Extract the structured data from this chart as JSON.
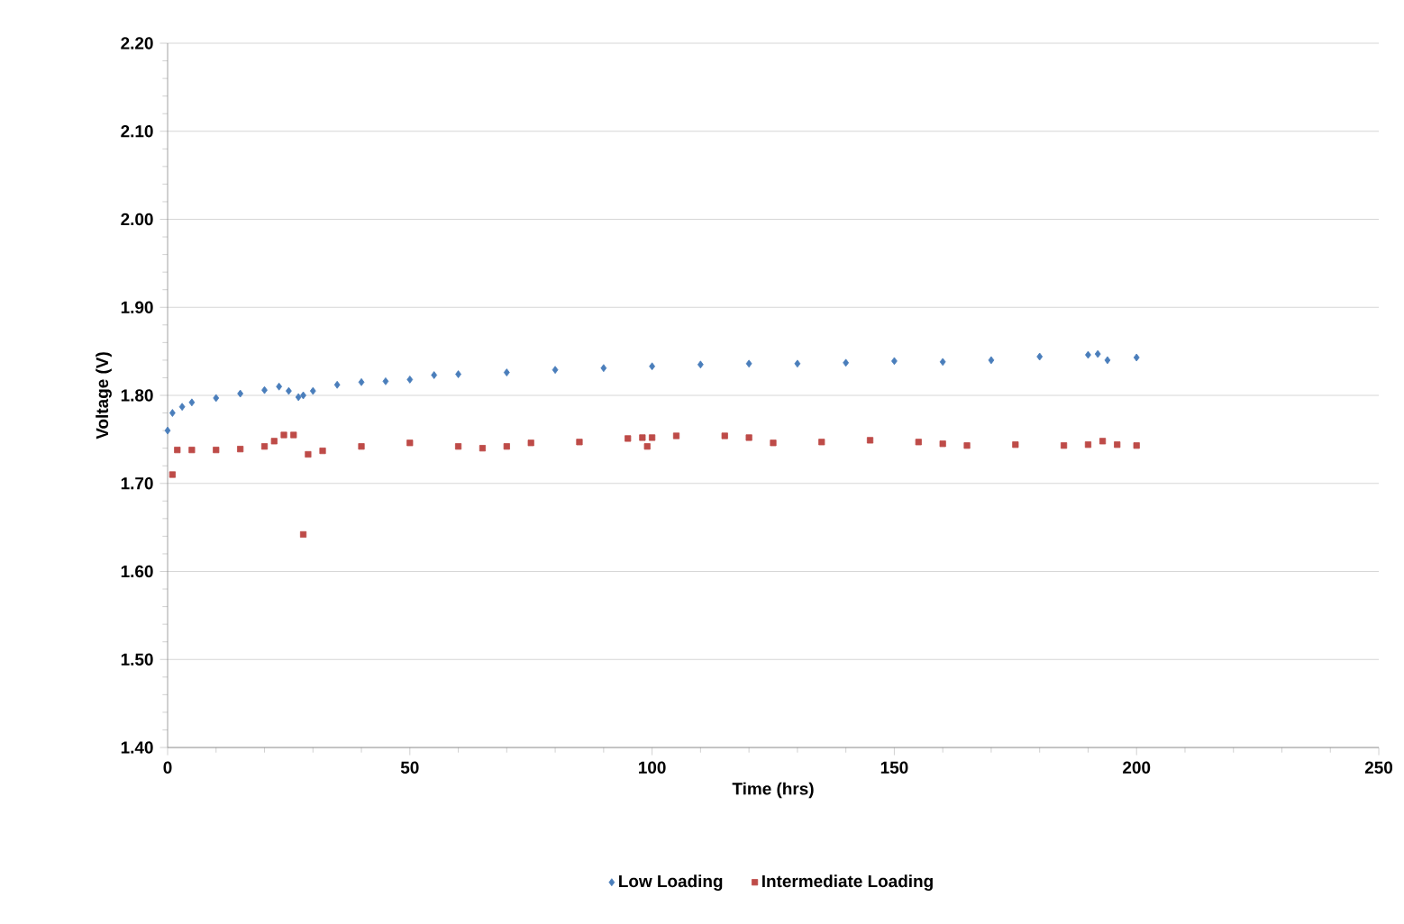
{
  "chart_data": {
    "type": "scatter",
    "xlabel": "Time (hrs)",
    "ylabel": "Voltage (V)",
    "xlim": [
      0,
      250
    ],
    "ylim": [
      1.4,
      2.2
    ],
    "xticks": [
      0,
      50,
      100,
      150,
      200,
      250
    ],
    "yticks": [
      {
        "value": 1.4,
        "label": "1.40"
      },
      {
        "value": 1.5,
        "label": "1.50"
      },
      {
        "value": 1.6,
        "label": "1.60"
      },
      {
        "value": 1.7,
        "label": "1.70"
      },
      {
        "value": 1.8,
        "label": "1.80"
      },
      {
        "value": 1.9,
        "label": "1.90"
      },
      {
        "value": 2.0,
        "label": "2.00"
      },
      {
        "value": 2.1,
        "label": "2.10"
      },
      {
        "value": 2.2,
        "label": "2.20"
      }
    ],
    "grid": "y",
    "legend": "bottom",
    "series": [
      {
        "name": "Low Loading",
        "color": "#4a7ebb",
        "marker": "diamond",
        "x": [
          0,
          1,
          3,
          5,
          10,
          15,
          20,
          23,
          25,
          27,
          28,
          30,
          35,
          40,
          45,
          50,
          55,
          60,
          70,
          80,
          90,
          100,
          110,
          120,
          130,
          140,
          150,
          160,
          170,
          180,
          190,
          192,
          194,
          200
        ],
        "values": [
          1.76,
          1.78,
          1.787,
          1.792,
          1.797,
          1.802,
          1.806,
          1.81,
          1.805,
          1.798,
          1.8,
          1.805,
          1.812,
          1.815,
          1.816,
          1.818,
          1.823,
          1.824,
          1.826,
          1.829,
          1.831,
          1.833,
          1.835,
          1.836,
          1.836,
          1.837,
          1.839,
          1.838,
          1.84,
          1.844,
          1.846,
          1.847,
          1.84,
          1.843
        ]
      },
      {
        "name": "Intermediate Loading",
        "color": "#be4b48",
        "marker": "square",
        "x": [
          1,
          2,
          5,
          10,
          15,
          20,
          22,
          24,
          26,
          28,
          29,
          32,
          40,
          50,
          60,
          65,
          70,
          75,
          85,
          95,
          98,
          99,
          100,
          105,
          115,
          120,
          125,
          135,
          145,
          155,
          160,
          165,
          175,
          185,
          190,
          193,
          196,
          200
        ],
        "values": [
          1.71,
          1.738,
          1.738,
          1.738,
          1.739,
          1.742,
          1.748,
          1.755,
          1.755,
          1.642,
          1.733,
          1.737,
          1.742,
          1.746,
          1.742,
          1.74,
          1.742,
          1.746,
          1.747,
          1.751,
          1.752,
          1.742,
          1.752,
          1.754,
          1.754,
          1.752,
          1.746,
          1.747,
          1.749,
          1.747,
          1.745,
          1.743,
          1.744,
          1.743,
          1.744,
          1.748,
          1.744,
          1.743
        ]
      }
    ]
  }
}
